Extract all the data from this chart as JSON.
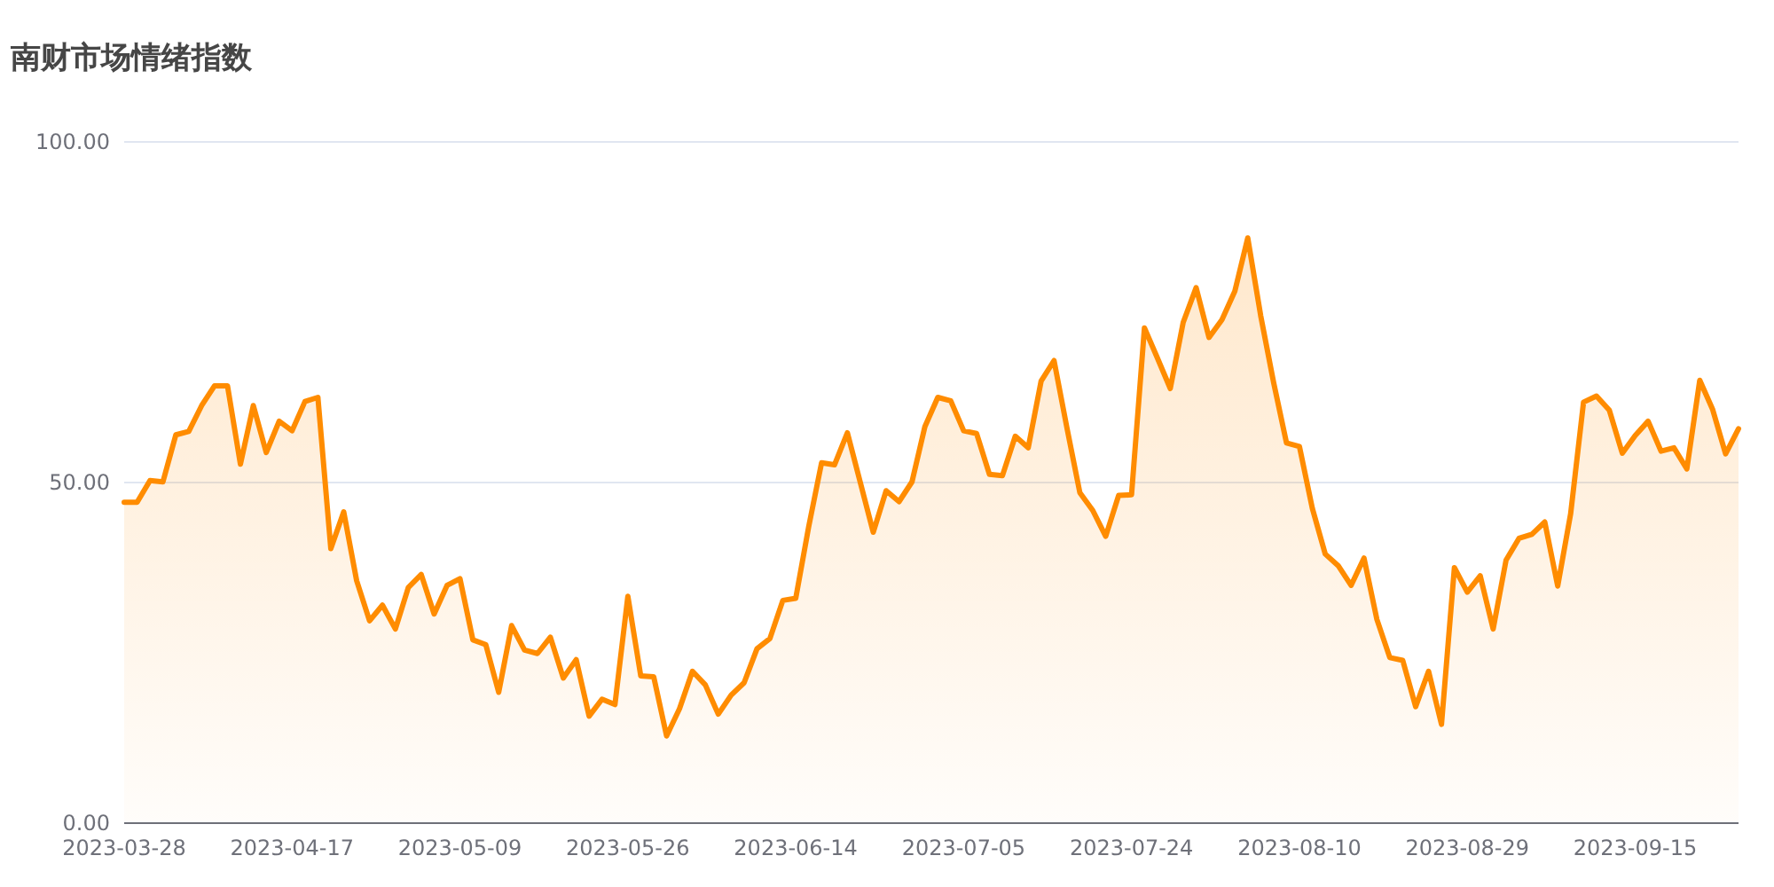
{
  "chart_data": {
    "type": "area",
    "title": "南财市场情绪指数",
    "categories": [
      "2023-03-28",
      null,
      null,
      null,
      null,
      null,
      null,
      null,
      null,
      null,
      null,
      null,
      null,
      "2023-04-17",
      null,
      null,
      null,
      null,
      null,
      null,
      null,
      null,
      null,
      null,
      null,
      null,
      "2023-05-09",
      null,
      null,
      null,
      null,
      null,
      null,
      null,
      null,
      null,
      null,
      null,
      null,
      "2023-05-26",
      null,
      null,
      null,
      null,
      null,
      null,
      null,
      null,
      null,
      null,
      null,
      null,
      "2023-06-14",
      null,
      null,
      null,
      null,
      null,
      null,
      null,
      null,
      null,
      null,
      null,
      null,
      "2023-07-05",
      null,
      null,
      null,
      null,
      null,
      null,
      null,
      null,
      null,
      null,
      null,
      null,
      "2023-07-24",
      null,
      null,
      null,
      null,
      null,
      null,
      null,
      null,
      null,
      null,
      null,
      null,
      "2023-08-10",
      null,
      null,
      null,
      null,
      null,
      null,
      null,
      null,
      null,
      null,
      null,
      null,
      "2023-08-29",
      null,
      null,
      null,
      null,
      null,
      null,
      null,
      null,
      null,
      null,
      null,
      null,
      "2023-09-15",
      null,
      null,
      null,
      null,
      null,
      null,
      null,
      null
    ],
    "series": [
      {
        "color": "#ff8c00",
        "values": [
          47.1,
          47.1,
          50.3,
          50.1,
          57.0,
          57.5,
          61.3,
          64.2,
          64.2,
          52.7,
          61.3,
          54.4,
          59.0,
          57.6,
          61.9,
          62.5,
          40.3,
          45.7,
          35.6,
          29.7,
          32.0,
          28.5,
          34.6,
          36.5,
          30.7,
          34.9,
          35.9,
          26.9,
          26.2,
          19.2,
          29.0,
          25.4,
          24.9,
          27.3,
          21.3,
          24.0,
          15.7,
          18.2,
          17.4,
          33.3,
          21.6,
          21.5,
          12.8,
          16.8,
          22.3,
          20.3,
          16.0,
          18.8,
          20.6,
          25.6,
          27.1,
          32.7,
          33.0,
          43.5,
          52.9,
          52.6,
          57.3,
          50.0,
          42.7,
          48.8,
          47.2,
          50.1,
          58.2,
          62.5,
          62.0,
          57.6,
          57.2,
          51.2,
          51.0,
          56.8,
          55.1,
          64.9,
          67.9,
          58.0,
          48.5,
          45.9,
          42.1,
          48.1,
          48.2,
          72.7,
          68.3,
          63.8,
          73.5,
          78.6,
          71.3,
          73.9,
          78.1,
          85.9,
          74.5,
          64.7,
          55.8,
          55.3,
          46.2,
          39.5,
          37.8,
          34.9,
          38.9,
          29.9,
          24.3,
          23.9,
          17.1,
          22.3,
          14.5,
          37.5,
          33.9,
          36.3,
          28.5,
          38.6,
          41.8,
          42.4,
          44.2,
          34.8,
          45.4,
          61.8,
          62.7,
          60.6,
          54.3,
          56.9,
          59.0,
          54.6,
          55.1,
          52.0,
          65.0,
          60.7,
          54.2,
          57.9
        ]
      }
    ],
    "ylim": [
      0,
      100
    ],
    "yticks": [
      {
        "value": 0,
        "label": "0.00"
      },
      {
        "value": 50,
        "label": "50.00"
      },
      {
        "value": 100,
        "label": "100.00"
      }
    ],
    "grid": "y"
  }
}
